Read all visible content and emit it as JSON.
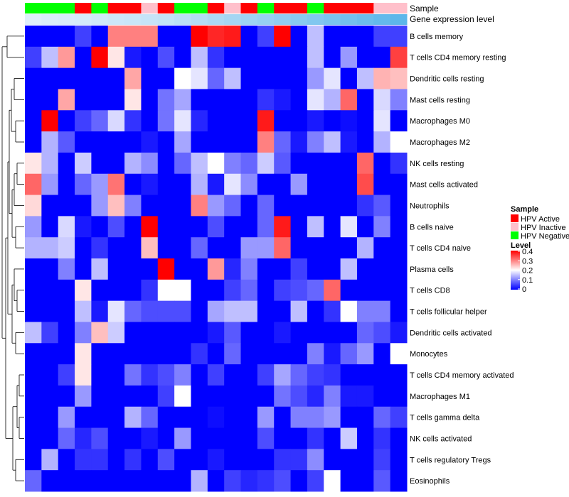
{
  "chart_data": {
    "type": "heatmap",
    "title": "",
    "sample_annotation_label": "Sample",
    "gene_annotation_label": "Gene expression level",
    "rows": [
      "B cells memory",
      "T cells CD4 memory resting",
      "Dendritic cells resting",
      "Mast cells resting",
      "Macrophages M0",
      "Macrophages M2",
      "NK cells resting",
      "Mast cells activated",
      "Neutrophils",
      "B cells naive",
      "T cells CD4 naive",
      "Plasma cells",
      "T cells CD8",
      "T cells follicular helper",
      "Dendritic cells activated",
      "Monocytes",
      "T cells CD4 memory activated",
      "Macrophages M1",
      "T cells gamma delta",
      "NK cells activated",
      "T cells regulatory  Tregs",
      "Eosinophils"
    ],
    "sample_groups": [
      "Negative",
      "Negative",
      "Negative",
      "Active",
      "Negative",
      "Active",
      "Active",
      "Inactive",
      "Active",
      "Negative",
      "Negative",
      "Active",
      "Inactive",
      "Active",
      "Negative",
      "Active",
      "Active",
      "Negative",
      "Active",
      "Active",
      "Active",
      "Inactive",
      "Inactive"
    ],
    "gene_expression_level": [
      0.05,
      0.08,
      0.1,
      0.12,
      0.15,
      0.18,
      0.2,
      0.22,
      0.25,
      0.3,
      0.35,
      0.4,
      0.45,
      0.5,
      0.55,
      0.6,
      0.65,
      0.7,
      0.75,
      0.8,
      0.85,
      0.9,
      0.95
    ],
    "values": [
      [
        0,
        0,
        0,
        0.05,
        0,
        0.3,
        0.3,
        0.3,
        0,
        0,
        0.4,
        0.37,
        0.38,
        0,
        0.05,
        0.4,
        0,
        0.15,
        0,
        0,
        0,
        0.05,
        0.05
      ],
      [
        0.05,
        0.15,
        0.28,
        0,
        0.4,
        0.22,
        0.02,
        0,
        0.06,
        0,
        0.15,
        0.04,
        0,
        0,
        0,
        0,
        0,
        0.15,
        0,
        0.12,
        0,
        0,
        0.35
      ],
      [
        0,
        0,
        0,
        0,
        0,
        0,
        0.27,
        0,
        0,
        0.2,
        0.18,
        0.08,
        0.15,
        0,
        0,
        0,
        0,
        0.12,
        0.18,
        0,
        0.15,
        0.26,
        0.25
      ],
      [
        0,
        0,
        0.27,
        0,
        0,
        0,
        0.22,
        0,
        0.09,
        0.13,
        0,
        0,
        0,
        0,
        0.04,
        0.02,
        0,
        0.18,
        0.14,
        0.32,
        0,
        0.17,
        0.1
      ],
      [
        0,
        0.4,
        0,
        0.05,
        0.08,
        0.17,
        0.04,
        0,
        0.09,
        0.18,
        0.03,
        0,
        0,
        0,
        0.38,
        0,
        0,
        0.02,
        0,
        0.01,
        0,
        0.18,
        0
      ],
      [
        0,
        0.14,
        0.07,
        0,
        0,
        0,
        0,
        0.02,
        0,
        0.13,
        0,
        0,
        0,
        0,
        0.3,
        0.08,
        0.02,
        0.1,
        0.15,
        0.02,
        0,
        0.14,
        0.2
      ],
      [
        0.22,
        0.14,
        0,
        0.16,
        0,
        0,
        0.14,
        0.11,
        0,
        0.08,
        0.15,
        0.2,
        0.1,
        0.08,
        0.16,
        0.07,
        0,
        0,
        0,
        0,
        0.32,
        0,
        0.04
      ],
      [
        0.32,
        0.12,
        0,
        0.08,
        0.12,
        0.31,
        0,
        0.02,
        0,
        0,
        0.14,
        0.02,
        0.18,
        0.11,
        0,
        0,
        0.12,
        0,
        0,
        0,
        0.34,
        0,
        0
      ],
      [
        0.23,
        0,
        0,
        0,
        0.12,
        0.25,
        0.1,
        0,
        0,
        0,
        0.3,
        0.12,
        0.08,
        0,
        0.08,
        0,
        0,
        0,
        0,
        0,
        0.04,
        0.07,
        0
      ],
      [
        0.12,
        0,
        0.17,
        0.02,
        0,
        0.06,
        0,
        0.4,
        0,
        0,
        0,
        0.06,
        0,
        0,
        0.08,
        0.38,
        0,
        0.15,
        0,
        0.18,
        0,
        0.1,
        0
      ],
      [
        0.14,
        0.14,
        0.16,
        0,
        0.04,
        0,
        0,
        0.25,
        0,
        0,
        0.08,
        0,
        0,
        0.12,
        0.12,
        0.32,
        0,
        0,
        0,
        0,
        0.14,
        0,
        0
      ],
      [
        0,
        0,
        0.1,
        0,
        0.15,
        0,
        0,
        0,
        0.4,
        0,
        0,
        0.28,
        0.03,
        0.1,
        0,
        0,
        0.05,
        0,
        0,
        0.15,
        0,
        0,
        0
      ],
      [
        0,
        0,
        0,
        0.22,
        0,
        0,
        0,
        0.04,
        0.2,
        0.2,
        0,
        0,
        0.05,
        0.08,
        0,
        0.05,
        0.06,
        0.08,
        0.32,
        0,
        0,
        0,
        0
      ],
      [
        0,
        0,
        0,
        0.15,
        0.02,
        0.18,
        0.08,
        0.06,
        0.06,
        0.06,
        0,
        0.13,
        0.15,
        0.15,
        0,
        0,
        0.15,
        0,
        0.04,
        0.2,
        0.1,
        0.1,
        0
      ],
      [
        0.15,
        0.05,
        0,
        0.1,
        0.25,
        0.16,
        0,
        0,
        0,
        0,
        0,
        0.02,
        0.07,
        0,
        0,
        0.02,
        0,
        0,
        0,
        0,
        0.08,
        0.06,
        0.02
      ],
      [
        0,
        0,
        0,
        0.22,
        0,
        0,
        0,
        0,
        0,
        0,
        0.04,
        0,
        0.08,
        0,
        0,
        0,
        0,
        0.1,
        0.02,
        0.08,
        0.12,
        0,
        0.2
      ],
      [
        0,
        0,
        0.05,
        0.22,
        0,
        0,
        0.09,
        0.04,
        0.06,
        0.1,
        0,
        0.05,
        0,
        0,
        0.05,
        0.13,
        0.08,
        0.05,
        0.04,
        0,
        0,
        0,
        0
      ],
      [
        0,
        0,
        0,
        0.12,
        0,
        0,
        0,
        0,
        0.05,
        0.2,
        0,
        0,
        0,
        0,
        0,
        0.09,
        0.06,
        0.03,
        0.1,
        0.02,
        0.02,
        0,
        0
      ],
      [
        0,
        0,
        0.12,
        0,
        0,
        0,
        0.14,
        0.08,
        0,
        0,
        0,
        0.01,
        0,
        0,
        0.12,
        0,
        0.1,
        0.1,
        0.12,
        0,
        0,
        0.08,
        0.05
      ],
      [
        0,
        0,
        0.08,
        0.03,
        0.06,
        0,
        0,
        0.02,
        0,
        0.12,
        0,
        0,
        0,
        0,
        0.06,
        0,
        0,
        0.04,
        0,
        0.16,
        0,
        0.04,
        0
      ],
      [
        0,
        0.14,
        0,
        0.04,
        0.04,
        0,
        0.04,
        0,
        0.06,
        0,
        0,
        0.02,
        0,
        0,
        0,
        0.04,
        0.04,
        0.11,
        0,
        0,
        0,
        0.05,
        0
      ],
      [
        0.08,
        0,
        0,
        0,
        0,
        0,
        0,
        0,
        0,
        0,
        0.14,
        0,
        0.05,
        0.03,
        0.04,
        0.06,
        0,
        0.05,
        0.2,
        0,
        0,
        0.07,
        0
      ]
    ],
    "legend": {
      "sample_title": "Sample",
      "sample_items": [
        {
          "label": "HPV Active",
          "color": "#ff0000"
        },
        {
          "label": "HPV Inactive",
          "color": "#ffc0cb"
        },
        {
          "label": "HPV Negative",
          "color": "#00ff00"
        }
      ],
      "level_title": "Level",
      "level_ticks": [
        "0.4",
        "0.3",
        "0.2",
        "0.1",
        "0"
      ],
      "level_range": [
        0,
        0.4
      ]
    },
    "colors": {
      "low": "#0000ff",
      "mid": "#ffffff",
      "high": "#ff0000",
      "active": "#ff0000",
      "inactive": "#ffc0cb",
      "negative": "#00ff00",
      "gene_low": "#e6f2fc",
      "gene_high": "#56b4e9"
    }
  }
}
